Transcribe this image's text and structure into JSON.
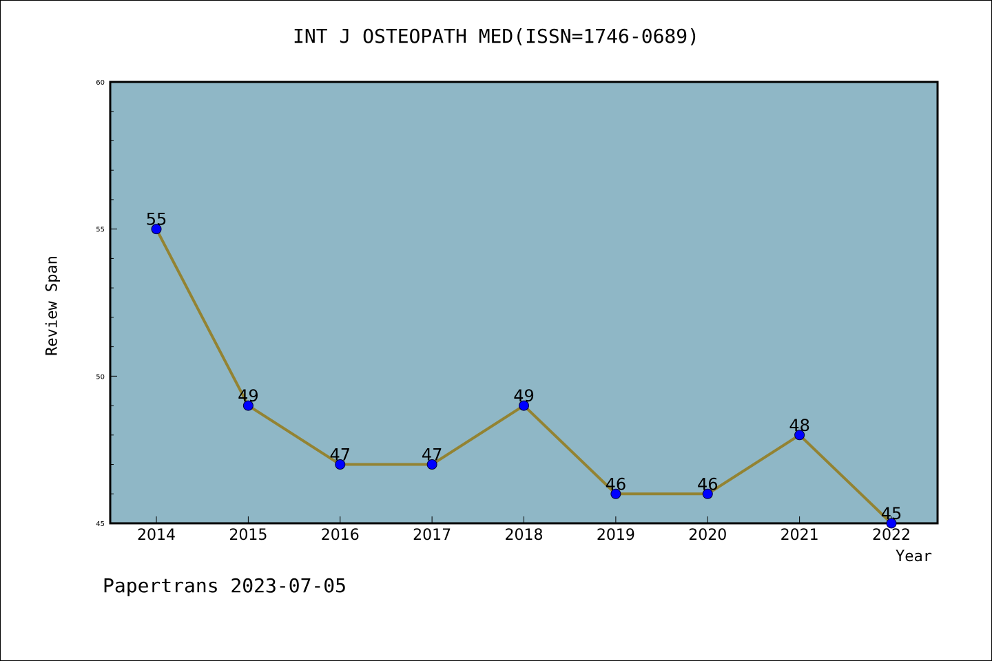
{
  "chart_data": {
    "type": "line",
    "title": "INT J OSTEOPATH MED(ISSN=1746-0689)",
    "xlabel": "Year",
    "ylabel": "Review Span",
    "categories": [
      "2014",
      "2015",
      "2016",
      "2017",
      "2018",
      "2019",
      "2020",
      "2021",
      "2022"
    ],
    "series": [
      {
        "values": [
          55,
          49,
          47,
          47,
          49,
          46,
          46,
          48,
          45
        ]
      }
    ],
    "ylim": [
      45,
      60
    ],
    "yticks": [
      45,
      50,
      55,
      60
    ],
    "grid": false,
    "data_labels": true
  },
  "footer": {
    "note": "Papertrans 2023-07-05"
  },
  "colors": {
    "plot_background": "#8fb7c6",
    "line": "#938332",
    "marker": "#0000ff",
    "frame": "#000000"
  }
}
